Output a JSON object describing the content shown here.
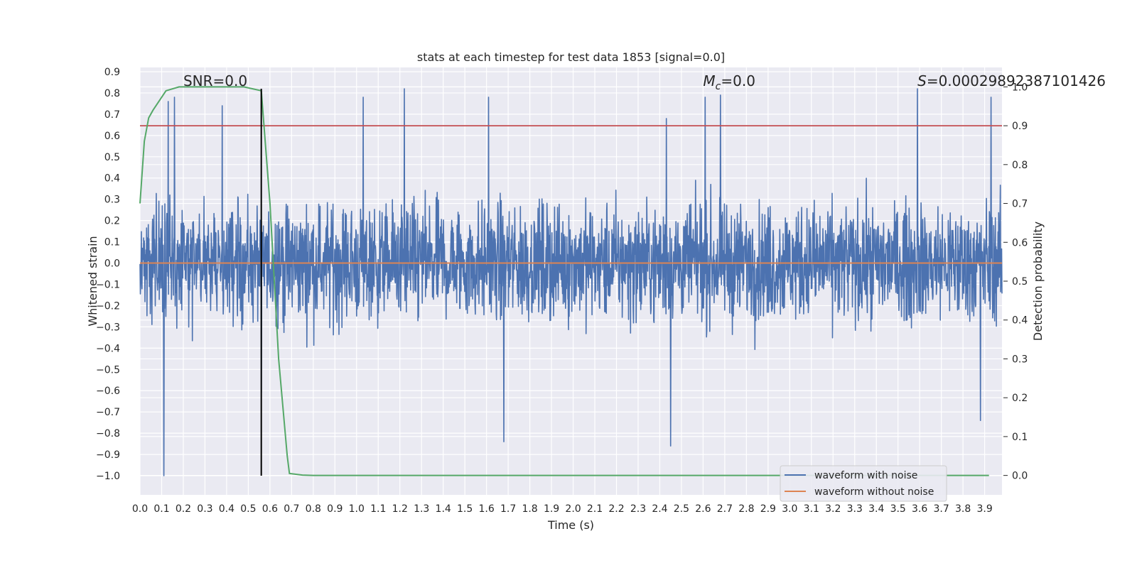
{
  "chart_data": {
    "type": "line",
    "title": "stats at each timestep for test data 1853 [signal=0.0]",
    "xlabel": "Time (s)",
    "ylabel": "Whitened strain",
    "y2label": "Detection probability",
    "xlim": [
      0.0,
      3.98
    ],
    "ylim": [
      -1.09,
      0.92
    ],
    "y2lim": [
      -0.05,
      1.05
    ],
    "xticks": [
      "0.0",
      "0.1",
      "0.2",
      "0.3",
      "0.4",
      "0.5",
      "0.6",
      "0.7",
      "0.8",
      "0.9",
      "1.0",
      "1.1",
      "1.2",
      "1.3",
      "1.4",
      "1.5",
      "1.6",
      "1.7",
      "1.8",
      "1.9",
      "2.0",
      "2.1",
      "2.2",
      "2.3",
      "2.4",
      "2.5",
      "2.6",
      "2.7",
      "2.8",
      "2.9",
      "3.0",
      "3.1",
      "3.2",
      "3.3",
      "3.4",
      "3.5",
      "3.6",
      "3.7",
      "3.8",
      "3.9"
    ],
    "yticks": [
      "0.9",
      "0.8",
      "0.7",
      "0.6",
      "0.5",
      "0.4",
      "0.3",
      "0.2",
      "0.1",
      "0.0",
      "−0.1",
      "−0.2",
      "−0.3",
      "−0.4",
      "−0.5",
      "−0.6",
      "−0.7",
      "−0.8",
      "−0.9",
      "−1.0"
    ],
    "y2ticks": [
      "1.0",
      "0.9",
      "0.8",
      "0.7",
      "0.6",
      "0.5",
      "0.4",
      "0.3",
      "0.2",
      "0.1",
      "0.0"
    ],
    "grid": true,
    "legend_position": "lower-right",
    "annotations": {
      "snr": "SNR=0.0",
      "mc_symbol": "M",
      "mc_sub": "c",
      "mc_value": "=0.0",
      "s_symbol": "S",
      "s_value": "=0.00029892387101426"
    },
    "series": [
      {
        "name": "waveform with noise",
        "color": "#4c72b0",
        "description": "dense noisy whitened strain, roughly within -0.6 to 0.6 with spikes",
        "spikes": [
          {
            "x": 0.11,
            "y": -1.0
          },
          {
            "x": 0.13,
            "y": 0.76
          },
          {
            "x": 0.16,
            "y": 0.78
          },
          {
            "x": 0.38,
            "y": 0.74
          },
          {
            "x": 0.56,
            "y": 0.82
          },
          {
            "x": 0.56,
            "y": -0.61
          },
          {
            "x": 1.03,
            "y": 0.78
          },
          {
            "x": 1.22,
            "y": 0.82
          },
          {
            "x": 1.61,
            "y": 0.78
          },
          {
            "x": 1.68,
            "y": -0.84
          },
          {
            "x": 2.43,
            "y": 0.68
          },
          {
            "x": 2.45,
            "y": -0.86
          },
          {
            "x": 2.61,
            "y": 0.78
          },
          {
            "x": 2.68,
            "y": 0.79
          },
          {
            "x": 3.59,
            "y": 0.82
          },
          {
            "x": 3.93,
            "y": 0.78
          },
          {
            "x": 3.88,
            "y": -0.74
          }
        ]
      },
      {
        "name": "waveform without noise",
        "color": "#dd8452",
        "x": [
          0.0,
          3.98
        ],
        "y": [
          0.0,
          0.0
        ]
      },
      {
        "name": "detection probability",
        "axis": "right",
        "color": "#55a868",
        "x": [
          0.0,
          0.02,
          0.04,
          0.06,
          0.12,
          0.18,
          0.24,
          0.3,
          0.36,
          0.42,
          0.48,
          0.56,
          0.6,
          0.64,
          0.68,
          0.69,
          0.75,
          0.8,
          1.0,
          2.0,
          3.0,
          3.92
        ],
        "y": [
          0.7,
          0.86,
          0.92,
          0.94,
          0.99,
          1.0,
          1.0,
          1.0,
          1.0,
          1.0,
          1.0,
          0.99,
          0.7,
          0.3,
          0.05,
          0.005,
          0.001,
          0.0,
          0.0,
          0.0,
          0.0,
          0.0
        ]
      }
    ],
    "threshold": {
      "y2": 0.9,
      "color": "#c44e52"
    },
    "event_line": {
      "x": 0.56,
      "y_from": -1.0,
      "y_to": 0.82,
      "color": "#000000"
    }
  }
}
